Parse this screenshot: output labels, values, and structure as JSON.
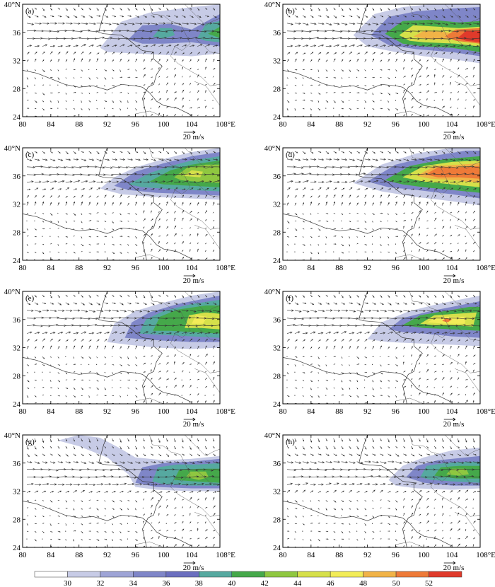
{
  "figure": {
    "panels": [
      {
        "label": "(a)",
        "lat_top": "40°N",
        "x_last": "108°E",
        "ref_vector": "20 m/s"
      },
      {
        "label": "(b)",
        "lat_top": "40°N",
        "x_last": "108°E",
        "ref_vector": "20 m/s"
      },
      {
        "label": "(c)",
        "lat_top": "40°N",
        "x_last": "108°E",
        "ref_vector": "20 m/s"
      },
      {
        "label": "(d)",
        "lat_top": "40°N",
        "x_last": "108°E",
        "ref_vector": "20 m/s"
      },
      {
        "label": "(e)",
        "lat_top": "40°N",
        "x_last": "108°E",
        "ref_vector": "20 m/s"
      },
      {
        "label": "(f)",
        "lat_top": "40°N",
        "x_last": "108°E",
        "ref_vector": "20 m/s"
      },
      {
        "label": "(g)",
        "lat_top": "40°N",
        "x_last": "108°E",
        "ref_vector": "20 m/s"
      },
      {
        "label": "(h)",
        "lat_top": "40°N",
        "x_last": "108°E",
        "ref_vector": "20 m/s"
      }
    ],
    "x_ticks": [
      "80",
      "84",
      "88",
      "92",
      "96",
      "100",
      "104",
      "108°E"
    ],
    "y_ticks": [
      "40°N",
      "36",
      "32",
      "28",
      "24"
    ]
  },
  "map_data": {
    "type": "wind_speed_contour_with_vectors",
    "lon_range": [
      80,
      108
    ],
    "lat_range": [
      24,
      40
    ],
    "units": "m/s",
    "reference_vector_ms": 20,
    "panels": [
      {
        "label": "(a)",
        "jet_core": [
          [
            100,
            35.8
          ],
          [
            106,
            36.2
          ]
        ],
        "core_speed_ms": [
          40,
          42
        ]
      },
      {
        "label": "(b)",
        "jet_core": [
          [
            98,
            35.8
          ],
          [
            105,
            35.6
          ]
        ],
        "core_speed_ms": [
          50,
          52
        ]
      },
      {
        "label": "(c)",
        "jet_core": [
          [
            103,
            36.4
          ],
          [
            106,
            36.6
          ]
        ],
        "core_speed_ms": [
          42,
          44
        ]
      },
      {
        "label": "(d)",
        "jet_core": [
          [
            100,
            36.6
          ],
          [
            106,
            36.8
          ]
        ],
        "core_speed_ms": [
          48,
          50
        ]
      },
      {
        "label": "(e)",
        "jet_core": [
          [
            103,
            35.8
          ],
          [
            106,
            36
          ]
        ],
        "core_speed_ms": [
          44,
          46
        ]
      },
      {
        "label": "(f)",
        "jet_core": [
          [
            101,
            35.8
          ],
          [
            104,
            36
          ]
        ],
        "core_speed_ms": [
          48,
          50
        ]
      },
      {
        "label": "(g)",
        "jet_core": [
          [
            101,
            34.2
          ],
          [
            106,
            34.4
          ]
        ],
        "core_speed_ms": [
          40,
          42
        ]
      },
      {
        "label": "(h)",
        "jet_core": [
          [
            102,
            34.6
          ],
          [
            106,
            34.8
          ]
        ],
        "core_speed_ms": [
          42,
          44
        ]
      }
    ]
  },
  "colorbar": {
    "labels": [
      "30",
      "32",
      "34",
      "36",
      "38",
      "40",
      "42",
      "44",
      "46",
      "48",
      "50",
      "52"
    ],
    "colors": [
      "#ffffff",
      "#c7cbe6",
      "#9ea4d6",
      "#7f86c8",
      "#6b6fbf",
      "#56a9a0",
      "#45a84a",
      "#8fc740",
      "#d6e04a",
      "#f2ec58",
      "#f1b347",
      "#ee7a38",
      "#e03a2b"
    ]
  }
}
